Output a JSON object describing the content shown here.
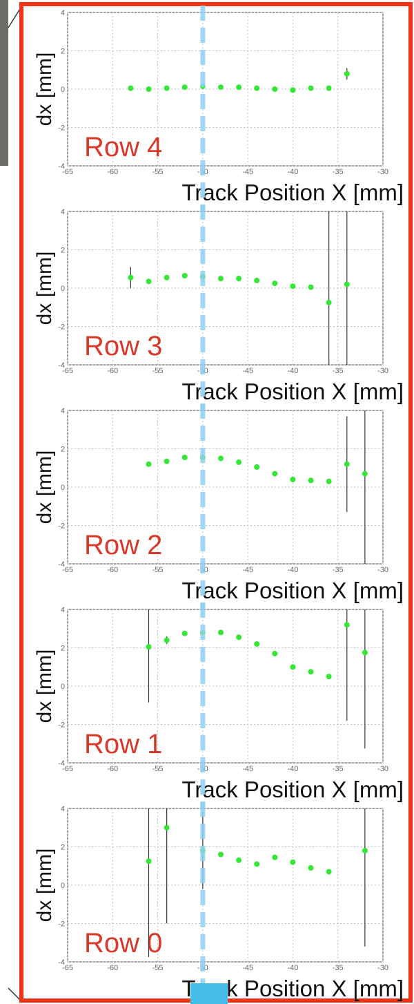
{
  "chart_data": [
    {
      "type": "scatter",
      "annotation": "Row 4",
      "xlabel": "Track Position X [mm]",
      "ylabel": "dx [mm]",
      "color": "#33e833",
      "grid": true,
      "vline_x": -50,
      "xlim": [
        -65,
        -30
      ],
      "ylim": [
        -4,
        4
      ],
      "xticks": [
        -65,
        -60,
        -55,
        -50,
        -45,
        -40,
        -35,
        -30
      ],
      "yticks": [
        -4,
        -2,
        0,
        2,
        4
      ],
      "x": [
        -58,
        -56,
        -54,
        -52,
        -50,
        -48,
        -46,
        -44,
        -42,
        -40,
        -38,
        -36,
        -34
      ],
      "values": [
        0.05,
        0,
        0.05,
        0.1,
        0.15,
        0.1,
        0.1,
        0.05,
        0,
        -0.05,
        0.05,
        0.05,
        0.8
      ],
      "errors": [
        null,
        null,
        null,
        null,
        null,
        null,
        null,
        null,
        null,
        null,
        null,
        null,
        0.3
      ]
    },
    {
      "type": "scatter",
      "annotation": "Row 3",
      "xlabel": "Track Position X [mm]",
      "ylabel": "dx [mm]",
      "color": "#33e833",
      "grid": true,
      "vline_x": -50,
      "xlim": [
        -65,
        -30
      ],
      "ylim": [
        -4,
        4
      ],
      "xticks": [
        -65,
        -60,
        -55,
        -50,
        -45,
        -40,
        -35,
        -30
      ],
      "yticks": [
        -4,
        -2,
        0,
        2,
        4
      ],
      "x": [
        -58,
        -56,
        -54,
        -52,
        -50,
        -48,
        -46,
        -44,
        -42,
        -40,
        -38,
        -36,
        -34
      ],
      "values": [
        0.55,
        0.35,
        0.55,
        0.65,
        0.6,
        0.5,
        0.5,
        0.4,
        0.25,
        0.1,
        0.05,
        -0.75,
        0.2
      ],
      "errors": [
        0.55,
        null,
        null,
        null,
        null,
        null,
        null,
        null,
        null,
        null,
        null,
        5,
        5
      ]
    },
    {
      "type": "scatter",
      "annotation": "Row 2",
      "xlabel": "Track Position X [mm]",
      "ylabel": "dx [mm]",
      "color": "#33e833",
      "grid": true,
      "vline_x": -50,
      "xlim": [
        -65,
        -30
      ],
      "ylim": [
        -4,
        4
      ],
      "xticks": [
        -65,
        -60,
        -55,
        -50,
        -45,
        -40,
        -35,
        -30
      ],
      "yticks": [
        -4,
        -2,
        0,
        2,
        4
      ],
      "x": [
        -56,
        -54,
        -52,
        -50,
        -48,
        -46,
        -44,
        -42,
        -40,
        -38,
        -36,
        -34,
        -32
      ],
      "values": [
        1.2,
        1.35,
        1.55,
        1.55,
        1.5,
        1.3,
        1.05,
        0.7,
        0.4,
        0.35,
        0.3,
        1.2,
        0.7
      ],
      "errors": [
        null,
        null,
        null,
        null,
        null,
        null,
        null,
        null,
        null,
        null,
        null,
        2.5,
        5
      ]
    },
    {
      "type": "scatter",
      "annotation": "Row 1",
      "xlabel": "Track Position X [mm]",
      "ylabel": "dx [mm]",
      "color": "#33e833",
      "grid": true,
      "vline_x": -50,
      "xlim": [
        -65,
        -30
      ],
      "ylim": [
        -4,
        4
      ],
      "xticks": [
        -65,
        -60,
        -55,
        -50,
        -45,
        -40,
        -35,
        -30
      ],
      "yticks": [
        -4,
        -2,
        0,
        2,
        4
      ],
      "x": [
        -56,
        -54,
        -52,
        -50,
        -48,
        -46,
        -44,
        -42,
        -40,
        -38,
        -36,
        -34,
        -32
      ],
      "values": [
        2.05,
        2.4,
        2.75,
        2.8,
        2.8,
        2.55,
        2.2,
        1.7,
        1.0,
        0.75,
        0.5,
        3.2,
        1.75
      ],
      "errors": [
        2.9,
        0.2,
        null,
        null,
        null,
        null,
        null,
        null,
        null,
        null,
        null,
        5,
        5
      ]
    },
    {
      "type": "scatter",
      "annotation": "Row 0",
      "xlabel": "Track Position X [mm]",
      "ylabel": "dx [mm]",
      "color": "#33e833",
      "grid": true,
      "vline_x": -50,
      "xlim": [
        -65,
        -30
      ],
      "ylim": [
        -4,
        4
      ],
      "xticks": [
        -65,
        -60,
        -55,
        -50,
        -45,
        -40,
        -35,
        -30
      ],
      "yticks": [
        -4,
        -2,
        0,
        2,
        4
      ],
      "x": [
        -56,
        -54,
        -50,
        -48,
        -46,
        -44,
        -42,
        -40,
        -38,
        -36,
        -32
      ],
      "values": [
        1.25,
        3.0,
        1.8,
        1.6,
        1.3,
        1.1,
        1.45,
        1.2,
        0.9,
        0.7,
        1.8
      ],
      "errors": [
        5,
        5,
        2,
        null,
        null,
        null,
        null,
        null,
        null,
        null,
        5
      ]
    }
  ]
}
